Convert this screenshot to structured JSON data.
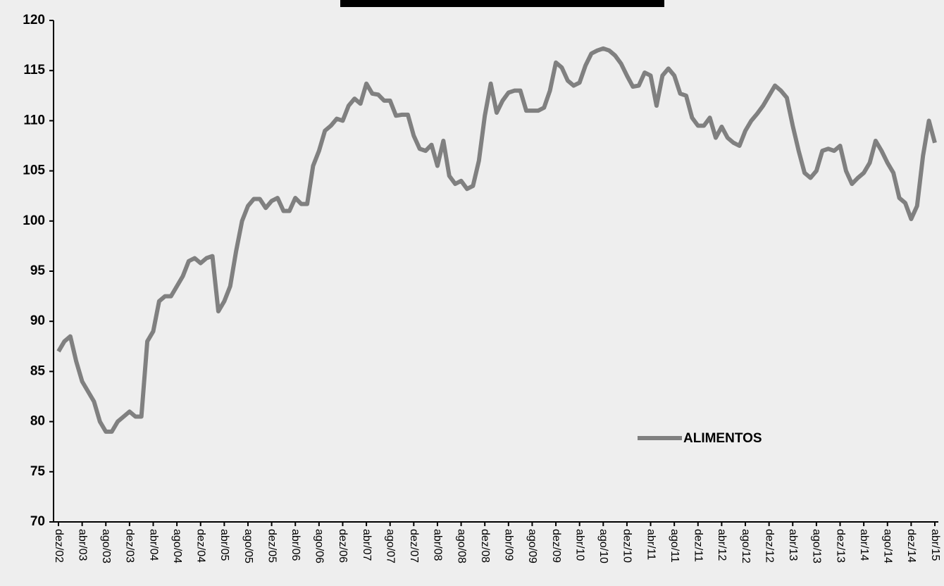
{
  "chart_data": {
    "type": "line",
    "categories": [
      "dez/02",
      null,
      null,
      null,
      "abr/03",
      null,
      null,
      null,
      "ago/03",
      null,
      null,
      null,
      "dez/03",
      null,
      null,
      null,
      "abr/04",
      null,
      null,
      null,
      "ago/04",
      null,
      null,
      null,
      "dez/04",
      null,
      null,
      null,
      "abr/05",
      null,
      null,
      null,
      "ago/05",
      null,
      null,
      null,
      "dez/05",
      null,
      null,
      null,
      "abr/06",
      null,
      null,
      null,
      "ago/06",
      null,
      null,
      null,
      "dez/06",
      null,
      null,
      null,
      "abr/07",
      null,
      null,
      null,
      "ago/07",
      null,
      null,
      null,
      "dez/07",
      null,
      null,
      null,
      "abr/08",
      null,
      null,
      null,
      "ago/08",
      null,
      null,
      null,
      "dez/08",
      null,
      null,
      null,
      "abr/09",
      null,
      null,
      null,
      "ago/09",
      null,
      null,
      null,
      "dez/09",
      null,
      null,
      null,
      "abr/10",
      null,
      null,
      null,
      "ago/10",
      null,
      null,
      null,
      "dez/10",
      null,
      null,
      null,
      "abr/11",
      null,
      null,
      null,
      "ago/11",
      null,
      null,
      null,
      "dez/11",
      null,
      null,
      null,
      "abr/12",
      null,
      null,
      null,
      "ago/12",
      null,
      null,
      null,
      "dez/12",
      null,
      null,
      null,
      "abr/13",
      null,
      null,
      null,
      "ago/13",
      null,
      null,
      null,
      "dez/13",
      null,
      null,
      null,
      "abr/14",
      null,
      null,
      null,
      "ago/14",
      null,
      null,
      null,
      "dez/14",
      null,
      null,
      null,
      "abr/15"
    ],
    "series": [
      {
        "name": "ALIMENTOS",
        "color": "#808080",
        "values": [
          87,
          88,
          88.5,
          86,
          84,
          83,
          82,
          80,
          79,
          79,
          80,
          80.5,
          81,
          80.5,
          80.5,
          88,
          89,
          92,
          92.5,
          92.5,
          93.5,
          94.5,
          96,
          96.3,
          95.8,
          96.3,
          96.5,
          91,
          92,
          93.5,
          97,
          100,
          101.5,
          102.2,
          102.2,
          101.3,
          102,
          102.3,
          101,
          101,
          102.3,
          101.7,
          101.7,
          105.5,
          107,
          109,
          109.5,
          110.2,
          110,
          111.5,
          112.2,
          111.7,
          113.7,
          112.7,
          112.6,
          112,
          112,
          110.5,
          110.6,
          110.6,
          108.5,
          107.2,
          107,
          107.6,
          105.5,
          108,
          104.5,
          103.7,
          104,
          103.2,
          103.5,
          106,
          110.5,
          113.7,
          110.8,
          112,
          112.8,
          113,
          113,
          111,
          111,
          111,
          111.3,
          113,
          115.8,
          115.3,
          114,
          113.5,
          113.8,
          115.5,
          116.7,
          117,
          117.2,
          117,
          116.5,
          115.7,
          114.5,
          113.4,
          113.5,
          114.8,
          114.5,
          111.5,
          114.5,
          115.2,
          114.5,
          112.7,
          112.5,
          110.3,
          109.5,
          109.5,
          110.3,
          108.3,
          109.4,
          108.3,
          107.8,
          107.5,
          109,
          110,
          110.7,
          111.5,
          112.5,
          113.5,
          113,
          112.3,
          109.5,
          107,
          104.8,
          104.3,
          105,
          107,
          107.2,
          107,
          107.5,
          105,
          103.7,
          104.3,
          104.8,
          105.8,
          108,
          107,
          105.8,
          104.8,
          102.3,
          101.8,
          100.2,
          101.5,
          106.5,
          110,
          107.8
        ]
      }
    ],
    "ylim": [
      70,
      120
    ],
    "yticks": [
      70,
      75,
      80,
      85,
      90,
      95,
      100,
      105,
      110,
      115,
      120
    ],
    "grid": false,
    "legend": "inside"
  }
}
